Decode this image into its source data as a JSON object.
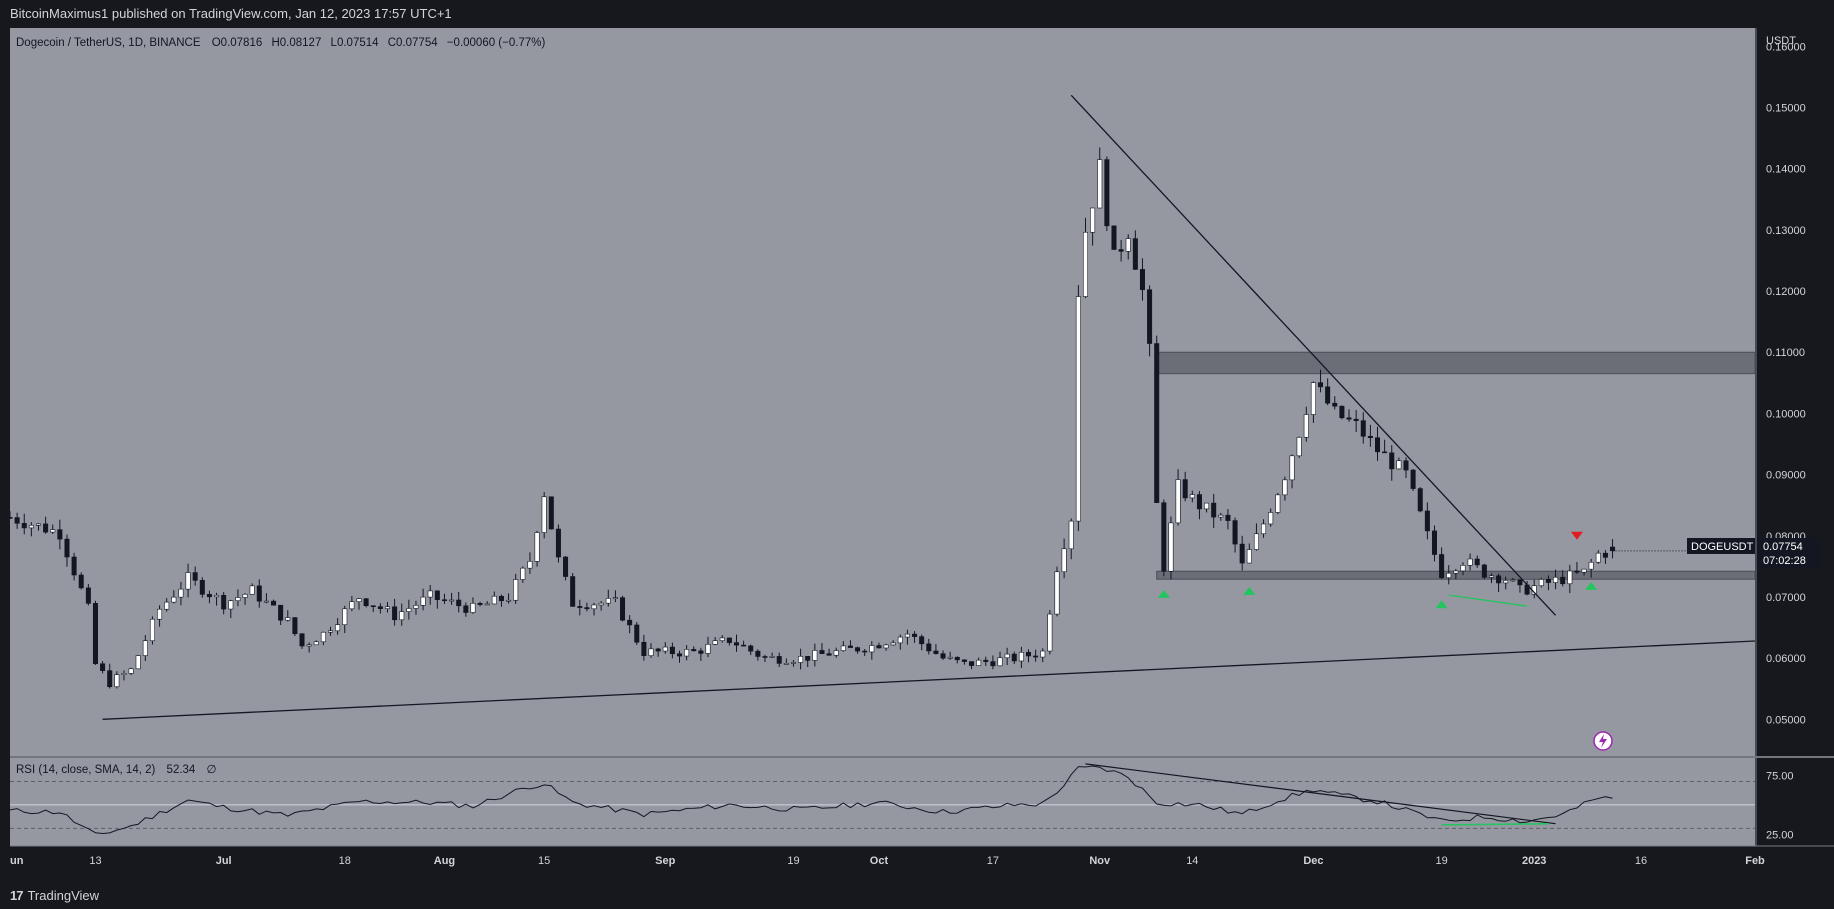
{
  "header": {
    "published_by": "BitcoinMaximus1 published on TradingView.com, Jan 12, 2023 17:57 UTC+1"
  },
  "footer": {
    "logo_mark": "17",
    "logo_text": "TradingView"
  },
  "chart_data": {
    "type": "candlestick",
    "symbol_line": {
      "name": "Dogecoin / TetherUS, 1D, BINANCE",
      "o_label": "O",
      "o": "0.07816",
      "h_label": "H",
      "h": "0.08127",
      "l_label": "L",
      "l": "0.07514",
      "c_label": "C",
      "c": "0.07754",
      "change": "−0.00060 (−0.77%)"
    },
    "currency_label": "USDT",
    "y_ticks": [
      "0.16000",
      "0.15000",
      "0.14000",
      "0.13000",
      "0.12000",
      "0.11000",
      "0.10000",
      "0.09000",
      "0.08000",
      "0.07000",
      "0.06000",
      "0.05000"
    ],
    "ylim": [
      0.044,
      0.163
    ],
    "x_ticks": [
      {
        "label": "un",
        "date": "2022-06-01"
      },
      {
        "label": "13",
        "date": "2022-06-13"
      },
      {
        "label": "Jul",
        "date": "2022-07-01"
      },
      {
        "label": "18",
        "date": "2022-07-18"
      },
      {
        "label": "Aug",
        "date": "2022-08-01"
      },
      {
        "label": "15",
        "date": "2022-08-15"
      },
      {
        "label": "Sep",
        "date": "2022-09-01"
      },
      {
        "label": "19",
        "date": "2022-09-19"
      },
      {
        "label": "Oct",
        "date": "2022-10-01"
      },
      {
        "label": "17",
        "date": "2022-10-17"
      },
      {
        "label": "Nov",
        "date": "2022-11-01"
      },
      {
        "label": "14",
        "date": "2022-11-14"
      },
      {
        "label": "Dec",
        "date": "2022-12-01"
      },
      {
        "label": "19",
        "date": "2022-12-19"
      },
      {
        "label": "2023",
        "date": "2023-01-01"
      },
      {
        "label": "16",
        "date": "2023-01-16"
      },
      {
        "label": "Feb",
        "date": "2023-02-01"
      }
    ],
    "xlim": [
      "2022-06-01",
      "2023-02-01"
    ],
    "last_price": {
      "ticker": "DOGEUSDT",
      "price": "0.07754",
      "countdown": "07:02:28"
    },
    "anchors": [
      [
        "2022-06-01",
        0.083
      ],
      [
        "2022-06-08",
        0.0805
      ],
      [
        "2022-06-12",
        0.068
      ],
      [
        "2022-06-13",
        0.059
      ],
      [
        "2022-06-15",
        0.056
      ],
      [
        "2022-06-18",
        0.058
      ],
      [
        "2022-06-22",
        0.068
      ],
      [
        "2022-06-26",
        0.073
      ],
      [
        "2022-07-01",
        0.069
      ],
      [
        "2022-07-05",
        0.071
      ],
      [
        "2022-07-10",
        0.066
      ],
      [
        "2022-07-12",
        0.062
      ],
      [
        "2022-07-15",
        0.064
      ],
      [
        "2022-07-20",
        0.07
      ],
      [
        "2022-07-25",
        0.067
      ],
      [
        "2022-07-30",
        0.07
      ],
      [
        "2022-08-05",
        0.068
      ],
      [
        "2022-08-10",
        0.07
      ],
      [
        "2022-08-13",
        0.076
      ],
      [
        "2022-08-15",
        0.087
      ],
      [
        "2022-08-17",
        0.076
      ],
      [
        "2022-08-19",
        0.069
      ],
      [
        "2022-08-25",
        0.069
      ],
      [
        "2022-08-29",
        0.061
      ],
      [
        "2022-09-05",
        0.061
      ],
      [
        "2022-09-10",
        0.063
      ],
      [
        "2022-09-15",
        0.06
      ],
      [
        "2022-09-20",
        0.06
      ],
      [
        "2022-09-25",
        0.061
      ],
      [
        "2022-09-30",
        0.062
      ],
      [
        "2022-10-05",
        0.064
      ],
      [
        "2022-10-10",
        0.06
      ],
      [
        "2022-10-13",
        0.059
      ],
      [
        "2022-10-20",
        0.06
      ],
      [
        "2022-10-24",
        0.061
      ],
      [
        "2022-10-26",
        0.075
      ],
      [
        "2022-10-28",
        0.083
      ],
      [
        "2022-10-29",
        0.12
      ],
      [
        "2022-10-30",
        0.13
      ],
      [
        "2022-11-01",
        0.14
      ],
      [
        "2022-11-03",
        0.125
      ],
      [
        "2022-11-05",
        0.13
      ],
      [
        "2022-11-07",
        0.12
      ],
      [
        "2022-11-08",
        0.11
      ],
      [
        "2022-11-09",
        0.085
      ],
      [
        "2022-11-10",
        0.075
      ],
      [
        "2022-11-12",
        0.088
      ],
      [
        "2022-11-15",
        0.085
      ],
      [
        "2022-11-19",
        0.082
      ],
      [
        "2022-11-21",
        0.075
      ],
      [
        "2022-11-24",
        0.082
      ],
      [
        "2022-11-27",
        0.09
      ],
      [
        "2022-11-29",
        0.097
      ],
      [
        "2022-12-01",
        0.105
      ],
      [
        "2022-12-04",
        0.1
      ],
      [
        "2022-12-07",
        0.098
      ],
      [
        "2022-12-10",
        0.094
      ],
      [
        "2022-12-14",
        0.09
      ],
      [
        "2022-12-17",
        0.08
      ],
      [
        "2022-12-19",
        0.074
      ],
      [
        "2022-12-22",
        0.076
      ],
      [
        "2022-12-25",
        0.074
      ],
      [
        "2022-12-28",
        0.073
      ],
      [
        "2022-12-30",
        0.071
      ],
      [
        "2023-01-02",
        0.072
      ],
      [
        "2023-01-05",
        0.073
      ],
      [
        "2023-01-08",
        0.074
      ],
      [
        "2023-01-10",
        0.077
      ],
      [
        "2023-01-12",
        0.07754
      ]
    ],
    "resistance_zone": [
      0.1065,
      0.11
    ],
    "support_zone": [
      0.0729,
      0.0742
    ],
    "resistance_zone_start": "2022-11-09",
    "support_zone_start": "2022-11-09",
    "descending_trendline": [
      [
        "2022-10-28",
        0.152
      ],
      [
        "2023-01-04",
        0.067
      ]
    ],
    "ascending_trendline": [
      [
        "2022-06-14",
        0.05
      ],
      [
        "2023-02-01",
        0.0628
      ]
    ],
    "green_divergence_line": [
      [
        "2022-12-20",
        0.0703
      ],
      [
        "2022-12-31",
        0.0685
      ]
    ],
    "green_up_markers": [
      [
        "2022-11-10",
        0.0705
      ],
      [
        "2022-11-22",
        0.071
      ],
      [
        "2022-12-19",
        0.0688
      ],
      [
        "2023-01-09",
        0.0718
      ]
    ],
    "red_down_marker": [
      "2023-01-07",
      0.08
    ],
    "rsi": {
      "label": "RSI (14, close, SMA, 14, 2)",
      "value": "52.34",
      "empty_glyph": "∅",
      "ticks": [
        "75.00",
        "25.00"
      ],
      "ylim": [
        15,
        90
      ],
      "upper_band": 70,
      "lower_band": 30,
      "midline": 50,
      "anchors": [
        [
          "2022-06-01",
          45
        ],
        [
          "2022-06-08",
          44
        ],
        [
          "2022-06-13",
          24
        ],
        [
          "2022-06-18",
          32
        ],
        [
          "2022-06-26",
          54
        ],
        [
          "2022-07-01",
          48
        ],
        [
          "2022-07-10",
          41
        ],
        [
          "2022-07-20",
          53
        ],
        [
          "2022-07-30",
          52
        ],
        [
          "2022-08-05",
          49
        ],
        [
          "2022-08-13",
          66
        ],
        [
          "2022-08-15",
          68
        ],
        [
          "2022-08-19",
          52
        ],
        [
          "2022-08-29",
          42
        ],
        [
          "2022-09-10",
          50
        ],
        [
          "2022-09-20",
          46
        ],
        [
          "2022-10-01",
          52
        ],
        [
          "2022-10-10",
          44
        ],
        [
          "2022-10-20",
          50
        ],
        [
          "2022-10-24",
          51
        ],
        [
          "2022-10-27",
          67
        ],
        [
          "2022-10-29",
          81
        ],
        [
          "2022-11-01",
          82
        ],
        [
          "2022-11-05",
          74
        ],
        [
          "2022-11-09",
          52
        ],
        [
          "2022-11-15",
          50
        ],
        [
          "2022-11-21",
          42
        ],
        [
          "2022-11-26",
          54
        ],
        [
          "2022-12-01",
          63
        ],
        [
          "2022-12-05",
          58
        ],
        [
          "2022-12-10",
          53
        ],
        [
          "2022-12-17",
          40
        ],
        [
          "2022-12-19",
          36
        ],
        [
          "2022-12-25",
          40
        ],
        [
          "2022-12-31",
          36
        ],
        [
          "2023-01-05",
          42
        ],
        [
          "2023-01-10",
          56
        ],
        [
          "2023-01-12",
          55
        ]
      ],
      "trendline": [
        [
          "2022-10-30",
          85
        ],
        [
          "2023-01-04",
          34
        ]
      ],
      "green_line": [
        [
          "2022-12-19",
          33
        ],
        [
          "2023-01-03",
          34
        ]
      ]
    }
  },
  "colors": {
    "plot_bg": "#9598a1",
    "frame_bg": "#16181d",
    "up_candle": "#ffffff",
    "down_candle": "#131722",
    "wick": "#131722",
    "zone": "#5d6068",
    "green": "#22c55e",
    "red": "#e11d1d",
    "axis_text": "#d1d4dc",
    "rsi_line": "#131722",
    "alert_icon": "#9c27b0"
  }
}
